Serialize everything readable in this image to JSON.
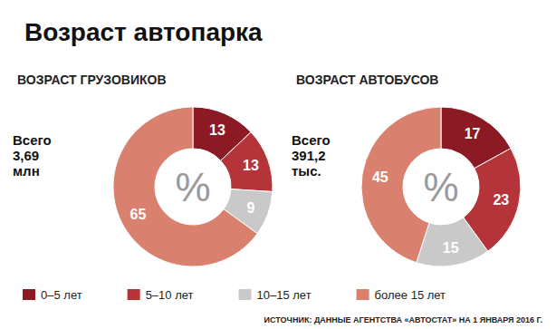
{
  "title": "Возраст автопарка",
  "source": "ИСТОЧНИК: ДАННЫЕ АГЕНТСТВА «АВТОСТАТ» НА 1 ЯНВАРЯ 2016 Г.",
  "chart_data": [
    {
      "type": "pie",
      "title": "ВОЗРАСТ ГРУЗОВИКОВ",
      "annotations": [
        "Всего 3,69 млн",
        "%"
      ],
      "categories": [
        "0–5 лет",
        "5–10 лет",
        "10–15 лет",
        "более 15 лет"
      ],
      "values": [
        13,
        13,
        9,
        65
      ],
      "colors": [
        "#8b1a24",
        "#b5343a",
        "#c9c9c9",
        "#d9806e"
      ],
      "data_labels": true,
      "legend": "bottom"
    },
    {
      "type": "pie",
      "title": "ВОЗРАСТ АВТОБУСОВ",
      "annotations": [
        "Всего 391,2 тыс.",
        "%"
      ],
      "categories": [
        "0–5 лет",
        "5–10 лет",
        "10–15 лет",
        "более 15 лет"
      ],
      "values": [
        17,
        23,
        15,
        45
      ],
      "colors": [
        "#8b1a24",
        "#b5343a",
        "#c9c9c9",
        "#d9806e"
      ],
      "data_labels": true,
      "legend": "bottom"
    }
  ]
}
